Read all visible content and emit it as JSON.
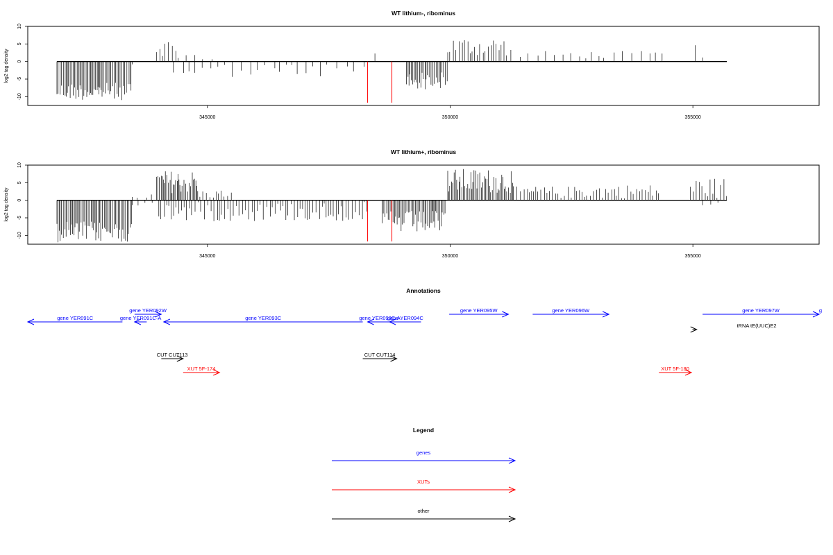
{
  "colors": {
    "gene": "#0000ff",
    "xut": "#ff0000",
    "other": "#000000",
    "signal": "#000000",
    "marker": "#ff0000"
  },
  "chart_data": [
    {
      "type": "bar",
      "title": "WT lithium-, ribominus",
      "ylabel": "log2 tag density",
      "xlim": [
        341300,
        357600
      ],
      "ylim": [
        -12.5,
        10
      ],
      "yticks": [
        10,
        5,
        0,
        -5,
        -10
      ],
      "xticks": [
        345000,
        350000,
        355000
      ],
      "grid": false,
      "segments": [
        {
          "from": 341900,
          "to": 343450,
          "sign": -1,
          "min": 6,
          "max": 11,
          "density": "dense"
        },
        {
          "from": 343450,
          "to": 343650,
          "sign": -1,
          "min": 0.5,
          "max": 1.5,
          "density": "sparse"
        },
        {
          "from": 343950,
          "to": 344350,
          "sign": 1,
          "min": 1.5,
          "max": 6.5,
          "density": "medium"
        },
        {
          "from": 344400,
          "to": 344850,
          "sign": 1,
          "min": 0.5,
          "max": 2.5,
          "density": "sparse"
        },
        {
          "from": 344300,
          "to": 348300,
          "sign": -1,
          "min": 0.5,
          "max": 4.5,
          "density": "sparse"
        },
        {
          "from": 344900,
          "to": 345100,
          "sign": 1,
          "min": 0.5,
          "max": 1.0,
          "density": "sparse"
        },
        {
          "from": 348450,
          "to": 348500,
          "sign": 1,
          "min": 2.0,
          "max": 2.4,
          "density": "sparse"
        },
        {
          "from": 349100,
          "to": 349950,
          "sign": -1,
          "min": 3,
          "max": 8,
          "density": "dense"
        },
        {
          "from": 349950,
          "to": 351200,
          "sign": 1,
          "min": 1.5,
          "max": 7,
          "density": "medium"
        },
        {
          "from": 351250,
          "to": 351500,
          "sign": 1,
          "min": 0.5,
          "max": 4,
          "density": "sparse"
        },
        {
          "from": 351600,
          "to": 354500,
          "sign": 1,
          "min": 0.8,
          "max": 3,
          "density": "sparse"
        },
        {
          "from": 355050,
          "to": 355250,
          "sign": 1,
          "min": 1,
          "max": 5,
          "density": "sparse"
        }
      ],
      "markers": [
        348300,
        348800
      ]
    },
    {
      "type": "bar",
      "title": "WT lithium+, ribominus",
      "ylabel": "log2 tag density",
      "xlim": [
        341300,
        357600
      ],
      "ylim": [
        -12.5,
        10
      ],
      "yticks": [
        10,
        5,
        0,
        -5,
        -10
      ],
      "xticks": [
        345000,
        350000,
        355000
      ],
      "grid": false,
      "segments": [
        {
          "from": 341900,
          "to": 343450,
          "sign": -1,
          "min": 6,
          "max": 12,
          "density": "dense"
        },
        {
          "from": 343450,
          "to": 343900,
          "sign": 1,
          "min": 0.5,
          "max": 2,
          "density": "sparse"
        },
        {
          "from": 343450,
          "to": 343900,
          "sign": -1,
          "min": 0.5,
          "max": 1.5,
          "density": "sparse"
        },
        {
          "from": 343950,
          "to": 344800,
          "sign": 1,
          "min": 2,
          "max": 8.5,
          "density": "dense"
        },
        {
          "from": 344800,
          "to": 345500,
          "sign": 1,
          "min": 0.5,
          "max": 3,
          "density": "medium"
        },
        {
          "from": 344000,
          "to": 348300,
          "sign": -1,
          "min": 0.5,
          "max": 6,
          "density": "medium"
        },
        {
          "from": 348600,
          "to": 349900,
          "sign": -1,
          "min": 3,
          "max": 9.5,
          "density": "dense"
        },
        {
          "from": 349950,
          "to": 351300,
          "sign": 1,
          "min": 2,
          "max": 9,
          "density": "dense"
        },
        {
          "from": 351300,
          "to": 352600,
          "sign": 1,
          "min": 0.5,
          "max": 4,
          "density": "medium"
        },
        {
          "from": 352600,
          "to": 354300,
          "sign": 1,
          "min": 0.5,
          "max": 4.5,
          "density": "medium"
        },
        {
          "from": 354950,
          "to": 355700,
          "sign": 1,
          "min": 0.5,
          "max": 6.5,
          "density": "medium"
        },
        {
          "from": 355200,
          "to": 355600,
          "sign": -1,
          "min": 0.5,
          "max": 1.5,
          "density": "sparse"
        }
      ],
      "markers": [
        348300,
        348800
      ]
    }
  ],
  "annotations": {
    "title": "Annotations",
    "features": [
      {
        "label": "gene YER091C",
        "kind": "gene",
        "from": 343250,
        "to": 341300,
        "row": 1
      },
      {
        "label": "gene YER091C-A",
        "kind": "gene",
        "from": 343750,
        "to": 343500,
        "row": 1
      },
      {
        "label": "gene YER092W",
        "kind": "gene",
        "from": 343500,
        "to": 344050,
        "row": 0
      },
      {
        "label": "gene YER093C",
        "kind": "gene",
        "from": 348200,
        "to": 344100,
        "row": 1
      },
      {
        "label": "gene YER093C-A",
        "kind": "gene",
        "from": 348800,
        "to": 348300,
        "row": 1
      },
      {
        "label": "gene YER094C",
        "kind": "gene",
        "from": 349400,
        "to": 348750,
        "row": 1
      },
      {
        "label": "gene YER095W",
        "kind": "gene",
        "from": 349980,
        "to": 351200,
        "row": 0
      },
      {
        "label": "gene YER096W",
        "kind": "gene",
        "from": 351700,
        "to": 353270,
        "row": 0
      },
      {
        "label": "gene YER097W",
        "kind": "gene",
        "from": 355200,
        "to": 357600,
        "row": 0
      },
      {
        "label": "g",
        "kind": "gene",
        "from": 357550,
        "to": 357600,
        "row": 0
      },
      {
        "label": "tRNA tE(UUC)E2",
        "kind": "other",
        "from": 354990,
        "to": 355080,
        "row": 2
      },
      {
        "label": "CUT CUT113",
        "kind": "other",
        "from": 344050,
        "to": 344500,
        "row": 3
      },
      {
        "label": "CUT CUT114",
        "kind": "other",
        "from": 348200,
        "to": 348900,
        "row": 3
      },
      {
        "label": "XUT 5F-174",
        "kind": "xut",
        "from": 344500,
        "to": 345250,
        "row": 4
      },
      {
        "label": "XUT 5F-180",
        "kind": "xut",
        "from": 354300,
        "to": 354970,
        "row": 4
      }
    ]
  },
  "legend": {
    "title": "Legend",
    "items": [
      {
        "label": "genes",
        "kind": "gene"
      },
      {
        "label": "XUTs",
        "kind": "xut"
      },
      {
        "label": "other",
        "kind": "other"
      }
    ]
  }
}
